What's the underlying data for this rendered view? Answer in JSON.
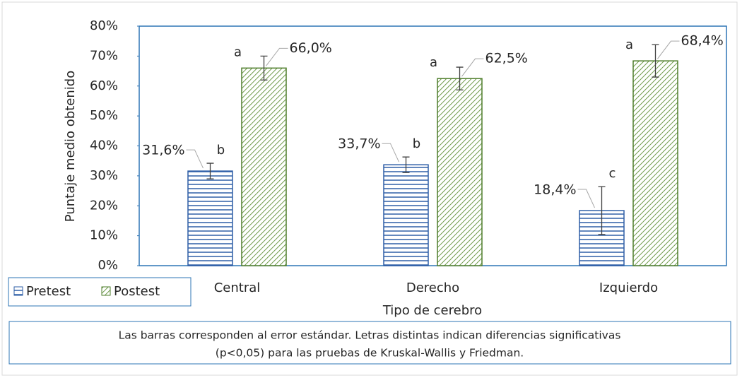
{
  "chart_data": {
    "type": "bar",
    "ylabel": "Puntaje medio obtenido",
    "xlabel": "Tipo de cerebro",
    "categories": [
      "Central",
      "Derecho",
      "Izquierdo"
    ],
    "series": [
      {
        "name": "Pretest",
        "color": "#2f5fa7",
        "values": [
          31.6,
          33.7,
          18.4
        ],
        "value_labels": [
          "31,6%",
          "33,7%",
          "18,4%"
        ],
        "errors": [
          2.6,
          2.6,
          8
        ],
        "letters": [
          "b",
          "b",
          "c"
        ]
      },
      {
        "name": "Postest",
        "color": "#4e7d2b",
        "values": [
          66.0,
          62.5,
          68.4
        ],
        "value_labels": [
          "66,0%",
          "62,5%",
          "68,4%"
        ],
        "errors": [
          4,
          3.8,
          5.4
        ],
        "letters": [
          "a",
          "a",
          "a"
        ]
      }
    ],
    "ylim": [
      0,
      80
    ],
    "yticks": [
      {
        "value": 0,
        "label": "0%"
      },
      {
        "value": 10,
        "label": "10%"
      },
      {
        "value": 20,
        "label": "20%"
      },
      {
        "value": 30,
        "label": "30%"
      },
      {
        "value": 40,
        "label": "40%"
      },
      {
        "value": 50,
        "label": "50%"
      },
      {
        "value": 60,
        "label": "60%"
      },
      {
        "value": 70,
        "label": "70%"
      },
      {
        "value": 80,
        "label": "80%"
      }
    ],
    "legend": "bottom-left",
    "note": [
      "Las barras corresponden al error estándar. Letras distintas indican diferencias significativas",
      "(p<0,05) para las pruebas de Kruskal-Wallis y Friedman."
    ]
  }
}
